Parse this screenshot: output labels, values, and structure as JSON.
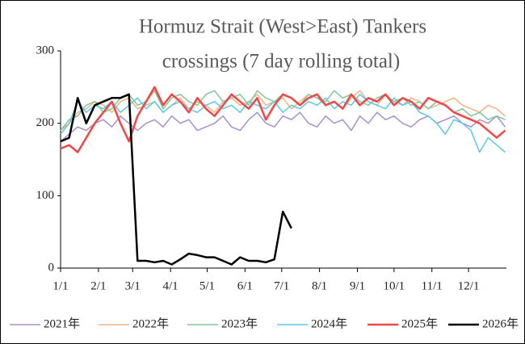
{
  "chart_data": {
    "type": "line",
    "title_lines": [
      "Hormuz Strait (West>East) Tankers",
      "crossings (7 day rolling total)"
    ],
    "x": [
      0,
      7,
      14,
      21,
      28,
      35,
      42,
      49,
      56,
      63,
      70,
      77,
      84,
      91,
      98,
      105,
      112,
      119,
      126,
      133,
      140,
      147,
      154,
      161,
      168,
      175,
      182,
      189,
      196,
      203,
      210,
      217,
      224,
      231,
      238,
      245,
      252,
      259,
      266,
      273,
      280,
      287,
      294,
      301,
      308,
      315,
      322,
      329,
      336,
      343,
      350,
      357,
      364
    ],
    "xlim": [
      0,
      365
    ],
    "xticks": [
      {
        "value": 0,
        "label": "1/1"
      },
      {
        "value": 31,
        "label": "2/1"
      },
      {
        "value": 59,
        "label": "3/1"
      },
      {
        "value": 90,
        "label": "4/1"
      },
      {
        "value": 120,
        "label": "5/1"
      },
      {
        "value": 151,
        "label": "6/1"
      },
      {
        "value": 181,
        "label": "7/1"
      },
      {
        "value": 212,
        "label": "8/1"
      },
      {
        "value": 243,
        "label": "9/1"
      },
      {
        "value": 273,
        "label": "10/1"
      },
      {
        "value": 304,
        "label": "11/1"
      },
      {
        "value": 334,
        "label": "12/1"
      }
    ],
    "ylim": [
      0,
      300
    ],
    "yticks": [
      0,
      100,
      200,
      300
    ],
    "legend": "bottom",
    "series": [
      {
        "name": "2021年",
        "color": "#a88fcb",
        "width": 1.5,
        "values": [
          175,
          185,
          195,
          190,
          200,
          205,
          195,
          210,
          200,
          190,
          200,
          205,
          195,
          210,
          200,
          205,
          190,
          195,
          200,
          210,
          195,
          190,
          205,
          215,
          200,
          195,
          210,
          205,
          215,
          200,
          195,
          210,
          200,
          205,
          190,
          210,
          200,
          215,
          205,
          210,
          200,
          195,
          205,
          210,
          200,
          205,
          210,
          200,
          195,
          205,
          200,
          210,
          195
        ]
      },
      {
        "name": "2022年",
        "color": "#f4b183",
        "width": 1.5,
        "values": [
          190,
          200,
          215,
          220,
          230,
          225,
          215,
          230,
          235,
          220,
          225,
          230,
          215,
          225,
          235,
          220,
          230,
          225,
          215,
          230,
          235,
          225,
          230,
          240,
          225,
          230,
          235,
          220,
          230,
          240,
          235,
          225,
          230,
          220,
          235,
          245,
          230,
          225,
          240,
          230,
          225,
          235,
          230,
          220,
          225,
          230,
          235,
          225,
          220,
          215,
          225,
          220,
          210
        ]
      },
      {
        "name": "2023年",
        "color": "#7fc79a",
        "width": 1.5,
        "values": [
          190,
          205,
          210,
          225,
          230,
          215,
          220,
          235,
          240,
          225,
          230,
          245,
          220,
          235,
          240,
          230,
          225,
          240,
          245,
          230,
          235,
          240,
          225,
          245,
          235,
          230,
          240,
          235,
          225,
          240,
          235,
          230,
          245,
          235,
          240,
          230,
          225,
          235,
          240,
          230,
          235,
          225,
          230,
          220,
          230,
          225,
          215,
          220,
          210,
          215,
          205,
          210,
          205
        ]
      },
      {
        "name": "2024年",
        "color": "#5bc8e8",
        "width": 1.5,
        "values": [
          185,
          200,
          230,
          215,
          225,
          220,
          230,
          215,
          225,
          235,
          220,
          230,
          215,
          225,
          230,
          220,
          215,
          225,
          230,
          220,
          225,
          215,
          230,
          225,
          220,
          230,
          215,
          225,
          220,
          230,
          225,
          235,
          220,
          230,
          225,
          240,
          230,
          225,
          220,
          235,
          225,
          230,
          215,
          210,
          200,
          185,
          205,
          200,
          190,
          160,
          180,
          170,
          160
        ]
      },
      {
        "name": "2025年",
        "color": "#f04747",
        "width": 2.5,
        "values": [
          165,
          170,
          160,
          180,
          200,
          215,
          230,
          200,
          175,
          210,
          230,
          250,
          225,
          240,
          230,
          215,
          235,
          220,
          210,
          225,
          240,
          230,
          220,
          235,
          205,
          225,
          240,
          235,
          225,
          235,
          240,
          225,
          230,
          220,
          240,
          225,
          235,
          230,
          240,
          225,
          235,
          230,
          220,
          235,
          230,
          225,
          215,
          210,
          205,
          200,
          190,
          180,
          190
        ]
      },
      {
        "name": "2026年",
        "color": "#000000",
        "width": 2.5,
        "values": [
          175,
          180,
          235,
          200,
          225,
          230,
          235,
          235,
          240,
          10,
          10,
          8,
          10,
          5,
          12,
          20,
          18,
          15,
          15,
          10,
          5,
          15,
          10,
          10,
          8,
          12,
          78,
          55,
          null,
          null,
          null,
          null,
          null,
          null,
          null,
          null,
          null,
          null,
          null,
          null,
          null,
          null,
          null,
          null,
          null,
          null,
          null,
          null,
          null,
          null,
          null,
          null,
          null
        ]
      }
    ]
  }
}
